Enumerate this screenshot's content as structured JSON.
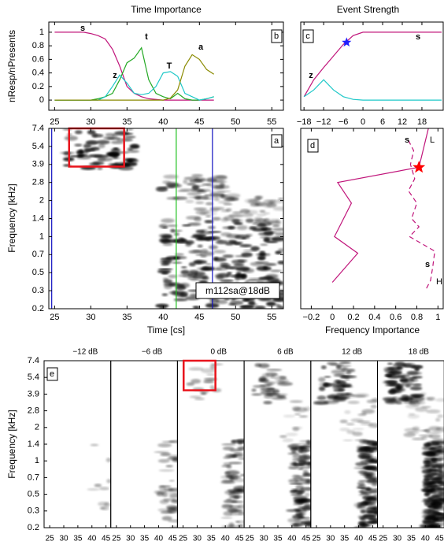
{
  "chart_data": [
    {
      "type": "line",
      "panel": "b",
      "title": "Time Importance",
      "ylabel": "nResp/nPresents",
      "x": [
        25,
        26,
        27,
        28,
        29,
        30,
        31,
        32,
        33,
        34,
        35,
        36,
        37,
        38,
        39,
        40,
        41,
        42,
        43,
        44,
        45,
        46,
        47
      ],
      "xlim": [
        24.2,
        56.6
      ],
      "xticks": [
        25,
        30,
        35,
        40,
        45,
        50,
        55
      ],
      "ylim": [
        -0.15,
        1.15
      ],
      "yticks": [
        0,
        0.2,
        0.4,
        0.6,
        0.8,
        1
      ],
      "series": [
        {
          "name": "s",
          "color": "#c0147a",
          "values": [
            1,
            1,
            1,
            1,
            1,
            0.98,
            0.95,
            0.9,
            0.75,
            0.5,
            0.2,
            0.1,
            0.05,
            0.02,
            0.01,
            0,
            0,
            0,
            0,
            0,
            0,
            0,
            0
          ]
        },
        {
          "name": "t",
          "color": "#22a822",
          "values": [
            0,
            0,
            0,
            0,
            0,
            0,
            0.02,
            0.05,
            0.1,
            0.3,
            0.55,
            0.62,
            0.77,
            0.3,
            0.1,
            0.05,
            0.02,
            0.1,
            0.02,
            0,
            0,
            0.02,
            0.05
          ]
        },
        {
          "name": "z",
          "color": "#1ec8c8",
          "values": [
            0,
            0,
            0,
            0,
            0,
            0,
            0,
            0.05,
            0.2,
            0.37,
            0.25,
            0.1,
            0.08,
            0.1,
            0.2,
            0.4,
            0.42,
            0.35,
            0.1,
            0.05,
            0,
            0.02,
            0.05
          ]
        },
        {
          "name": "a",
          "color": "#8a8a00",
          "values": [
            0,
            0,
            0,
            0,
            0,
            0,
            0,
            0,
            0,
            0,
            0,
            0,
            0,
            0,
            0,
            0,
            0.03,
            0.15,
            0.5,
            0.67,
            0.6,
            0.45,
            0.38
          ]
        }
      ],
      "annotations": [
        "T"
      ]
    },
    {
      "type": "line",
      "panel": "c",
      "title": "Event Strength",
      "x": [
        -18,
        -15,
        -12,
        -9,
        -6,
        -3,
        0,
        6,
        12,
        18,
        24
      ],
      "xlim": [
        -19,
        24.5
      ],
      "xticks": [
        {
          "value": -18,
          "label": "−18"
        },
        {
          "value": -12,
          "label": "−12"
        },
        {
          "value": -6,
          "label": "−6"
        },
        0,
        6,
        12,
        18
      ],
      "ylim": [
        -0.15,
        1.15
      ],
      "series": [
        {
          "name": "s",
          "color": "#c0147a",
          "values": [
            0.05,
            0.3,
            0.48,
            0.65,
            0.82,
            0.95,
            1,
            1,
            1,
            1,
            1
          ]
        },
        {
          "name": "z",
          "color": "#1ec8c8",
          "values": [
            0.05,
            0.15,
            0.3,
            0.15,
            0.05,
            0.01,
            0,
            0,
            0,
            0,
            0
          ]
        }
      ],
      "marker": {
        "x": -5,
        "y": 0.85,
        "color": "#2020ff"
      }
    },
    {
      "type": "spectrogram",
      "panel": "a",
      "xlabel": "Time [cs]",
      "ylabel": "Frequency [kHz]",
      "xlim": [
        24.2,
        56.6
      ],
      "xticks": [
        25,
        30,
        35,
        40,
        45,
        50,
        55
      ],
      "ylim": [
        0.2,
        7.4
      ],
      "yticks": [
        0.2,
        0.3,
        0.5,
        0.7,
        1,
        1.4,
        2,
        2.8,
        3.9,
        5.4,
        7.4
      ],
      "vlines": [
        {
          "x": 24.6,
          "color": "#1010c0"
        },
        {
          "x": 41.8,
          "color": "#22c022"
        },
        {
          "x": 46.8,
          "color": "#1010c0"
        }
      ],
      "box": {
        "x": [
          27,
          34.6
        ],
        "y": [
          3.75,
          7.4
        ],
        "color": "#e8141c"
      },
      "annotation": "m112sa@18dB"
    },
    {
      "type": "profile",
      "panel": "d",
      "xlabel": "Frequency Importance",
      "xlim": [
        -0.3,
        1.05
      ],
      "xticks": [
        {
          "value": -0.2,
          "label": "−0.2"
        },
        0,
        0.2,
        0.4,
        0.6,
        0.8,
        1
      ],
      "ylim": [
        0.2,
        7.4
      ],
      "series": [
        {
          "name": "L",
          "color": "#c0147a",
          "dash": false,
          "y": [
            7.4,
            3.7,
            2.8,
            1.9,
            1,
            0.72,
            0.38
          ],
          "values": [
            0.91,
            0.82,
            0.05,
            0.18,
            0.02,
            0.24,
            0
          ]
        },
        {
          "name": "H",
          "color": "#c0147a",
          "dash": true,
          "y": [
            6,
            5,
            3.9,
            3,
            2.4,
            1.9,
            1.4,
            1.2,
            1,
            0.75,
            0.55,
            0.4,
            0.3
          ],
          "values": [
            0.72,
            0.77,
            0.74,
            0.78,
            0.72,
            0.8,
            0.75,
            0.82,
            0.73,
            0.97,
            0.95,
            0.93,
            0.88
          ]
        }
      ],
      "annotations": [
        "s",
        "s"
      ],
      "marker": {
        "x": 0.82,
        "y": 3.7,
        "color": "#ff0000"
      }
    },
    {
      "type": "spectrogram-grid",
      "panel": "e",
      "ylabel": "Frequency [kHz]",
      "titles": [
        "−12 dB",
        "−6 dB",
        "0 dB",
        "6 dB",
        "12 dB",
        "18 dB"
      ],
      "xlim": [
        23,
        46.7
      ],
      "xticks": [
        25,
        30,
        35,
        40,
        45
      ],
      "ylim": [
        0.2,
        7.4
      ],
      "yticks": [
        0.2,
        0.3,
        0.5,
        0.7,
        1,
        1.4,
        2,
        2.8,
        3.9,
        5.4,
        7.4
      ],
      "box": {
        "panel": 2,
        "x": [
          25.2,
          36.5
        ],
        "y": [
          4.2,
          7.4
        ],
        "color": "#e8141c"
      }
    }
  ]
}
